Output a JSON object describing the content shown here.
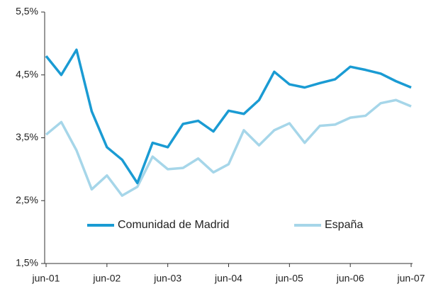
{
  "chart_data": {
    "type": "line",
    "categories": [
      "jun-01",
      null,
      null,
      null,
      "jun-02",
      null,
      null,
      null,
      "jun-03",
      null,
      null,
      null,
      "jun-04",
      null,
      null,
      null,
      "jun-05",
      null,
      null,
      null,
      "jun-06",
      null,
      null,
      null,
      "jun-07"
    ],
    "series": [
      {
        "name": "Comunidad de Madrid",
        "color": "#1a9bd3",
        "values": [
          4.8,
          4.5,
          4.9,
          3.92,
          3.35,
          3.15,
          2.78,
          3.42,
          3.35,
          3.72,
          3.77,
          3.6,
          3.93,
          3.88,
          4.1,
          4.55,
          4.35,
          4.3,
          4.37,
          4.43,
          4.63,
          4.58,
          4.52,
          4.4,
          4.3
        ]
      },
      {
        "name": "España",
        "color": "#a6d6e9",
        "values": [
          3.55,
          3.75,
          3.3,
          2.68,
          2.9,
          2.58,
          2.72,
          3.2,
          3.0,
          3.02,
          3.17,
          2.95,
          3.08,
          3.62,
          3.38,
          3.62,
          3.73,
          3.42,
          3.69,
          3.71,
          3.82,
          3.85,
          4.05,
          4.1,
          4.0
        ]
      }
    ],
    "ylim": [
      1.5,
      5.5
    ],
    "yticks": [
      {
        "value": 1.5,
        "label": "1,5%"
      },
      {
        "value": 2.5,
        "label": "2,5%"
      },
      {
        "value": 3.5,
        "label": "3,5%"
      },
      {
        "value": 4.5,
        "label": "4,5%"
      },
      {
        "value": 5.5,
        "label": "5,5%"
      }
    ],
    "legend": "bottom"
  }
}
